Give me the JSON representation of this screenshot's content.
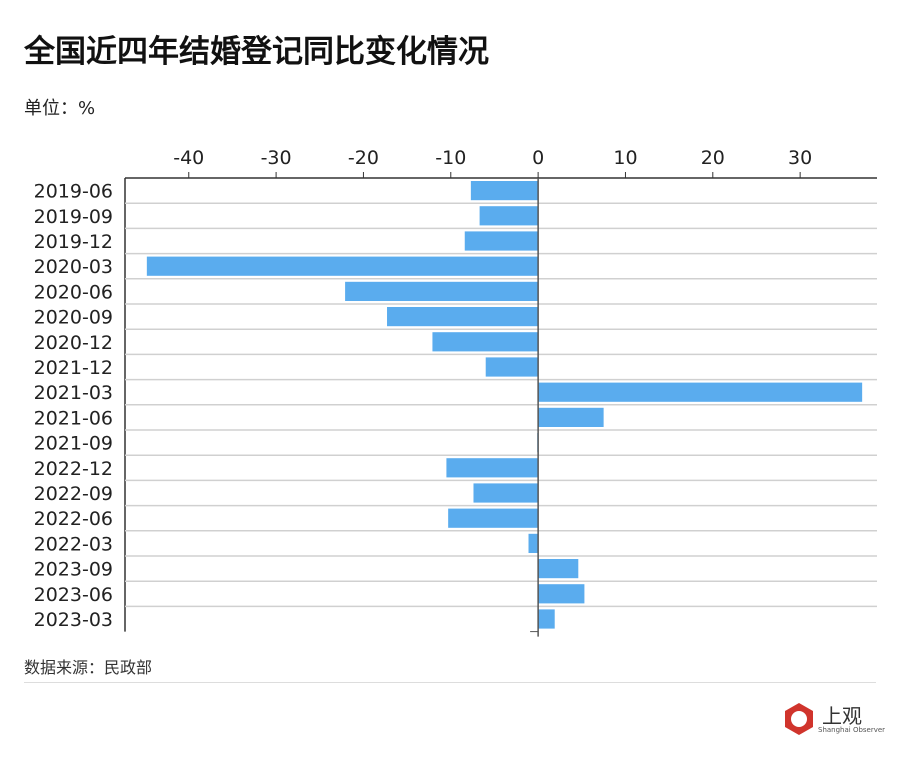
{
  "title": "全国近四年结婚登记同比变化情况",
  "unit_label": "单位：%",
  "source": "数据来源：民政部",
  "logo": {
    "text": "上观",
    "subtitle": "Shanghai Observer"
  },
  "colors": {
    "bar": "#5aacee",
    "grid": "#d0d0d0",
    "axis": "#555555"
  },
  "chart_data": {
    "type": "bar",
    "orientation": "horizontal",
    "categories": [
      "2019-06",
      "2019-09",
      "2019-12",
      "2020-03",
      "2020-06",
      "2020-09",
      "2020-12",
      "2021-12",
      "2021-03",
      "2021-06",
      "2021-09",
      "2022-12",
      "2022-09",
      "2022-06",
      "2022-03",
      "2023-09",
      "2023-06",
      "2023-03"
    ],
    "values": [
      -7.7,
      -6.7,
      -8.4,
      -44.8,
      -22.1,
      -17.3,
      -12.1,
      -6.0,
      37.1,
      7.5,
      -0.1,
      -10.5,
      -7.4,
      -10.3,
      -1.1,
      4.6,
      5.3,
      1.9
    ],
    "xticks": [
      -40,
      -30,
      -20,
      -10,
      0,
      10,
      20,
      30
    ],
    "xlim": [
      -47.3,
      38.8
    ],
    "axis_position": "top",
    "grid": true,
    "title": "全国近四年结婚登记同比变化情况",
    "xlabel": "",
    "ylabel": ""
  }
}
